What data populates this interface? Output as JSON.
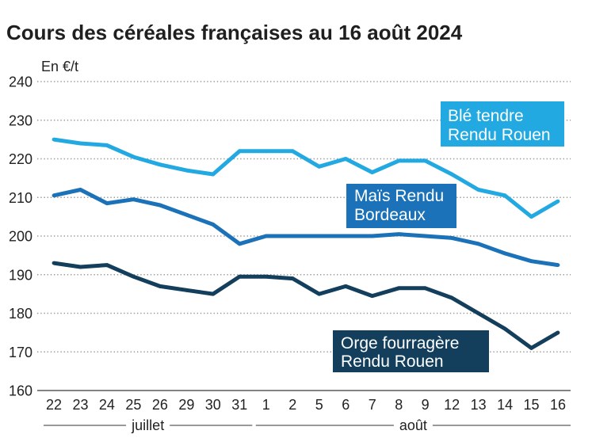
{
  "chart_data": {
    "type": "line",
    "title": "Cours des céréales françaises au 16 août 2024",
    "ylabel": "En €/t",
    "ylim": [
      160,
      240
    ],
    "yticks": [
      160,
      170,
      180,
      190,
      200,
      210,
      220,
      230,
      240
    ],
    "grid": true,
    "categories": [
      "22",
      "23",
      "24",
      "25",
      "26",
      "29",
      "30",
      "31",
      "1",
      "2",
      "5",
      "6",
      "7",
      "8",
      "9",
      "12",
      "13",
      "14",
      "15",
      "16"
    ],
    "month_groups": [
      {
        "label": "juillet",
        "start": 0,
        "end": 7
      },
      {
        "label": "août",
        "start": 8,
        "end": 19
      }
    ],
    "series": [
      {
        "label": [
          "Blé tendre",
          "Rendu Rouen"
        ],
        "color": "#22a9e1",
        "values": [
          225,
          224,
          223.5,
          220.5,
          218.5,
          217,
          216,
          222,
          222,
          222,
          218,
          220,
          216.5,
          219.5,
          219.5,
          216,
          212,
          210.5,
          205,
          209
        ]
      },
      {
        "label": [
          "Maïs Rendu",
          "Bordeaux"
        ],
        "color": "#1c72b8",
        "values": [
          210.5,
          212,
          208.5,
          209.5,
          208,
          205.5,
          203,
          198,
          200,
          200,
          200,
          200,
          200,
          200.5,
          200,
          199.5,
          198,
          195.5,
          193.5,
          192.5
        ]
      },
      {
        "label": [
          "Orge fourragère",
          "Rendu Rouen"
        ],
        "color": "#133f5d",
        "values": [
          193,
          192,
          192.5,
          189.5,
          187,
          186,
          185,
          189.5,
          189.5,
          189,
          185,
          187,
          184.5,
          186.5,
          186.5,
          184,
          180,
          176,
          171,
          175
        ]
      }
    ]
  }
}
